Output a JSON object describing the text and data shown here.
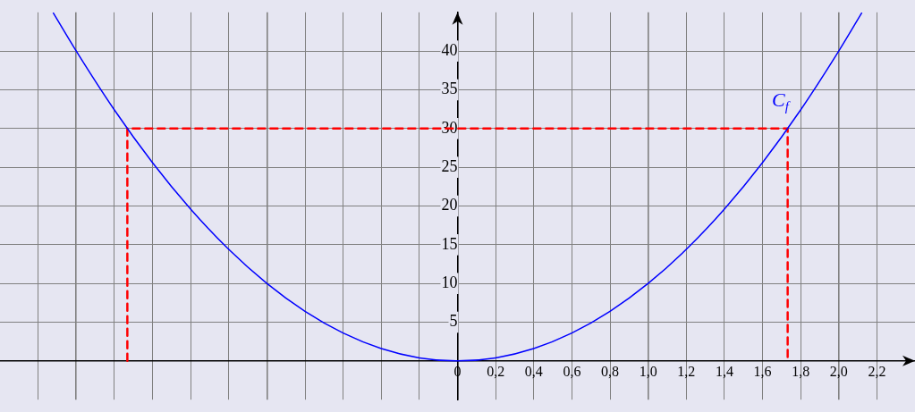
{
  "chart_data": {
    "type": "line",
    "xlim": [
      -2.4,
      2.4
    ],
    "ylim": [
      -5,
      45
    ],
    "xticks": [
      {
        "value": -2.2,
        "label": null
      },
      {
        "value": -2,
        "label": null
      },
      {
        "value": -1.8,
        "label": null
      },
      {
        "value": -1.6,
        "label": null
      },
      {
        "value": -1.4,
        "label": null
      },
      {
        "value": -1.2,
        "label": null
      },
      {
        "value": -1,
        "label": null
      },
      {
        "value": -0.8,
        "label": null
      },
      {
        "value": -0.6,
        "label": null
      },
      {
        "value": -0.4,
        "label": null
      },
      {
        "value": -0.2,
        "label": null
      },
      {
        "value": 0,
        "label": "0"
      },
      {
        "value": 0.2,
        "label": "0,2"
      },
      {
        "value": 0.4,
        "label": "0,4"
      },
      {
        "value": 0.6,
        "label": "0,6"
      },
      {
        "value": 0.8,
        "label": "0,8"
      },
      {
        "value": 1,
        "label": "1,0"
      },
      {
        "value": 1.2,
        "label": "1,2"
      },
      {
        "value": 1.4,
        "label": "1,4"
      },
      {
        "value": 1.6,
        "label": "1,6"
      },
      {
        "value": 1.8,
        "label": "1,8"
      },
      {
        "value": 2,
        "label": "2,0"
      },
      {
        "value": 2.2,
        "label": "2,2"
      }
    ],
    "yticks": [
      {
        "value": 0,
        "label": null
      },
      5,
      10,
      15,
      20,
      25,
      30,
      35,
      40
    ],
    "grid": true,
    "marker": "none",
    "legend": false,
    "series": [
      {
        "color": "#0000ff",
        "line_style": "solid",
        "x": [
          -2.12,
          -2,
          -1.8,
          -1.6,
          -1.4,
          -1.2,
          -1,
          -0.8,
          -0.6,
          -0.4,
          -0.2,
          0,
          0.2,
          0.4,
          0.6,
          0.8,
          1,
          1.2,
          1.4,
          1.6,
          1.8,
          2,
          2.12
        ],
        "values": [
          44.9,
          40,
          32.4,
          25.6,
          19.6,
          14.4,
          10,
          6.4,
          3.6,
          1.6,
          0.4,
          0,
          0.4,
          1.6,
          3.6,
          6.4,
          10,
          14.4,
          19.6,
          25.6,
          32.4,
          40,
          44.9
        ]
      },
      {
        "color": "#ff0000",
        "line_style": "dashed",
        "x": [
          -1.732,
          -1.732,
          1.732,
          1.732
        ],
        "values": [
          0,
          30,
          30,
          0
        ]
      }
    ],
    "annotations": [
      "C$_{f}$"
    ]
  }
}
